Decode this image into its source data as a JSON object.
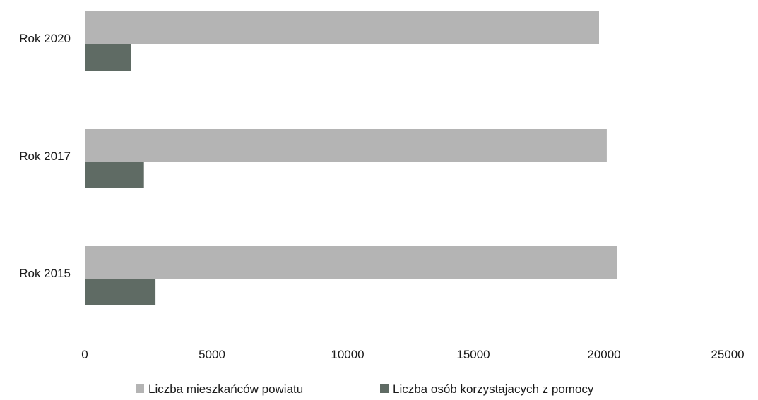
{
  "chart_data": {
    "type": "bar",
    "orientation": "horizontal",
    "categories": [
      "Rok 2020",
      "Rok 2017",
      "Rok 2015"
    ],
    "series": [
      {
        "name": "Liczba mieszkańców powiatu",
        "color": "#b4b4b4",
        "values": [
          20000,
          20300,
          20700
        ]
      },
      {
        "name": "Liczba osób korzystajacych z pomocy",
        "color": "#5f6b64",
        "values": [
          1800,
          2300,
          2750
        ]
      }
    ],
    "xlim": [
      0,
      25000
    ],
    "x_ticks": [
      "0",
      "5000",
      "10000",
      "15000",
      "20000",
      "25000"
    ],
    "grid": false,
    "legend_position": "bottom"
  }
}
